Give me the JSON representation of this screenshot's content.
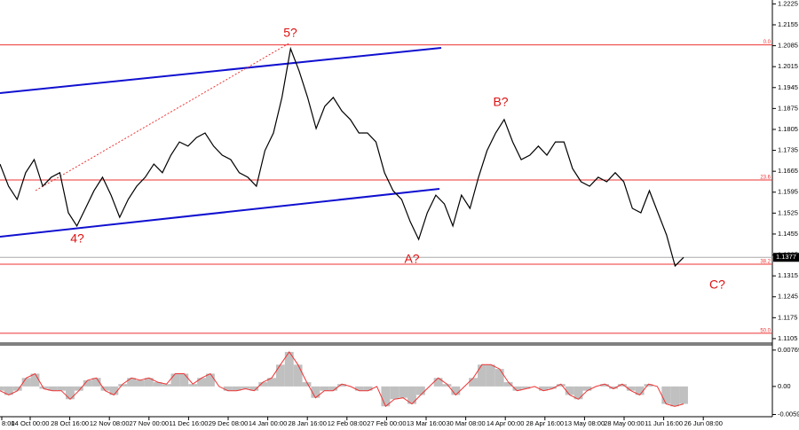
{
  "chart_data": [
    {
      "type": "line",
      "series": [
        {
          "color": "#000000",
          "values": [
            1.1689,
            1.1615,
            1.1571,
            1.166,
            1.1704,
            1.1615,
            1.1645,
            1.166,
            1.1526,
            1.1482,
            1.1541,
            1.16,
            1.1645,
            1.1585,
            1.1511,
            1.1571,
            1.1615,
            1.1645,
            1.1689,
            1.166,
            1.1719,
            1.1763,
            1.1749,
            1.1778,
            1.1793,
            1.1749,
            1.1719,
            1.1704,
            1.166,
            1.1645,
            1.1615,
            1.1734,
            1.1793,
            1.1912,
            1.2075,
            1.2001,
            1.1912,
            1.1808,
            1.1882,
            1.1912,
            1.1867,
            1.1838,
            1.1793,
            1.1793,
            1.1763,
            1.166,
            1.16,
            1.1571,
            1.1497,
            1.1437,
            1.1526,
            1.1585,
            1.1556,
            1.1482,
            1.1585,
            1.1541,
            1.1645,
            1.1734,
            1.1793,
            1.1838,
            1.1763,
            1.1704,
            1.1719,
            1.1749,
            1.1719,
            1.1763,
            1.1763,
            1.1674,
            1.163,
            1.1615,
            1.1645,
            1.163,
            1.166,
            1.163,
            1.1541,
            1.1526,
            1.16,
            1.1526,
            1.1452,
            1.1348,
            1.1377
          ]
        }
      ],
      "ylim": [
        1.109,
        1.2238
      ],
      "yticks": [
        1.2225,
        1.2155,
        1.2085,
        1.2015,
        1.1945,
        1.1875,
        1.1805,
        1.1735,
        1.1665,
        1.1595,
        1.1525,
        1.1455,
        1.1385,
        1.1315,
        1.1245,
        1.1175,
        1.1105
      ],
      "last_price": 1.1377,
      "levels": [
        {
          "value": 1.2088,
          "label": "0.0"
        },
        {
          "value": 1.1636,
          "label": "23.6"
        },
        {
          "value": 1.1354,
          "label": "38.2"
        },
        {
          "value": 1.1123,
          "label": "50.0"
        }
      ],
      "level_color": "#e33",
      "annotations": [
        "5?",
        "4?",
        "B?",
        "A?",
        "C?"
      ]
    },
    {
      "type": "bar",
      "values": [
        -0.0009,
        -0.0018,
        -0.0009,
        0.0018,
        0.0027,
        -0.0005,
        -0.0009,
        -0.0009,
        -0.0027,
        -0.0009,
        0.0013,
        0.0018,
        -0.0009,
        -0.0018,
        0.0005,
        0.0018,
        0.0013,
        0.0018,
        0.0009,
        0.0005,
        0.0027,
        0.0027,
        0.0005,
        0.0018,
        0.0027,
        0,
        -0.0009,
        -0.0009,
        -0.0005,
        -0.0009,
        0.0009,
        0.0018,
        0.0046,
        0.0073,
        0.0046,
        0.0009,
        -0.0024,
        -0.0009,
        -0.0009,
        0.0005,
        0,
        -0.0009,
        -0.0009,
        0,
        -0.0042,
        -0.0027,
        -0.0024,
        -0.0037,
        -0.0018,
        0,
        0.0018,
        0.0005,
        -0.0018,
        0,
        0.0018,
        0.0046,
        0.0046,
        0.0037,
        0.0009,
        -0.0009,
        -0.0005,
        0,
        -0.0009,
        -0.0005,
        0.0005,
        -0.0018,
        -0.0027,
        -0.0009,
        0,
        0.0005,
        -0.0005,
        0.0005,
        -0.0009,
        -0.0018,
        0.0005,
        0,
        -0.0037,
        -0.0042,
        -0.0037
      ],
      "color": "#c0c0c0",
      "line_color": "#e33",
      "ylim": [
        -0.0064,
        0.0086
      ],
      "yticks": [
        0.00769,
        {
          "value": 0,
          "label": "0.00"
        },
        -0.00593
      ],
      "x_labels": [
        "8:00",
        "14 Oct 00:00",
        "28 Oct 16:00",
        "12 Nov 08:00",
        "27 Nov 00:00",
        "11 Dec 16:00",
        "29 Dec 08:00",
        "14 Jan 00:00",
        "28 Jan 16:00",
        "12 Feb 08:00",
        "27 Feb 00:00",
        "13 Mar 16:00",
        "30 Mar 08:00",
        "14 Apr 00:00",
        "28 Apr 16:00",
        "13 May 08:00",
        "28 May 00:00",
        "11 Jun 16:00",
        "26 Jun 08:00"
      ]
    }
  ]
}
